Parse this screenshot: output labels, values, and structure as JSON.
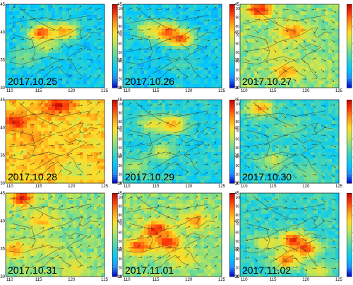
{
  "figure": {
    "panel_dates": [
      "2017.10.25",
      "2017.10.26",
      "2017.10.27",
      "2017.10.28",
      "2017.10.29",
      "2017.10.30",
      "2017.10.31",
      "2017.11.01",
      "2017.11.02"
    ]
  },
  "chart_data": {
    "type": "heatmap",
    "grid": "3x3 panels",
    "x_ticks": [
      "110",
      "115",
      "120",
      "125"
    ],
    "y_ticks": [
      "30",
      "35",
      "40",
      "45"
    ],
    "xlim": [
      110,
      125
    ],
    "ylim": [
      30,
      45
    ],
    "colorbar": {
      "ticks": [
        "10",
        "20",
        "30",
        "40",
        "50",
        "60",
        "70",
        "80",
        "90",
        "100"
      ],
      "range": [
        10,
        105
      ],
      "colormap": [
        "#0000c8",
        "#1e90ff",
        "#00c8ff",
        "#32d2c8",
        "#78dc8c",
        "#c8e650",
        "#ffdc28",
        "#ff9614",
        "#ff3c0a",
        "#c80000"
      ]
    },
    "panels": [
      {
        "date": "2017.10.25",
        "hotspots": [
          {
            "lon": 115.5,
            "lat": 39.7,
            "value": 100
          },
          {
            "lon": 119,
            "lat": 40.2,
            "value": 85
          },
          {
            "lon": 116,
            "lat": 37.5,
            "value": 65
          },
          {
            "lon": 113,
            "lat": 35.5,
            "value": 55
          }
        ],
        "background": 35
      },
      {
        "date": "2017.10.26",
        "hotspots": [
          {
            "lon": 116.5,
            "lat": 40,
            "value": 100
          },
          {
            "lon": 118.8,
            "lat": 38.8,
            "value": 95
          },
          {
            "lon": 114,
            "lat": 40.5,
            "value": 70
          },
          {
            "lon": 119,
            "lat": 34,
            "value": 45
          }
        ],
        "background": 35
      },
      {
        "date": "2017.10.27",
        "hotspots": [
          {
            "lon": 113,
            "lat": 44,
            "value": 100
          },
          {
            "lon": 118,
            "lat": 40,
            "value": 90
          },
          {
            "lon": 117,
            "lat": 33,
            "value": 85
          },
          {
            "lon": 115,
            "lat": 36.5,
            "value": 70
          },
          {
            "lon": 121,
            "lat": 34,
            "value": 65
          }
        ],
        "background": 55
      },
      {
        "date": "2017.10.28",
        "hotspots": [
          {
            "lon": 111.5,
            "lat": 41,
            "value": 100
          },
          {
            "lon": 118,
            "lat": 44,
            "value": 100
          },
          {
            "lon": 114,
            "lat": 38,
            "value": 85
          },
          {
            "lon": 116,
            "lat": 34,
            "value": 80
          },
          {
            "lon": 120.5,
            "lat": 32.5,
            "value": 60
          }
        ],
        "background": 75
      },
      {
        "date": "2017.10.29",
        "hotspots": [
          {
            "lon": 117.5,
            "lat": 40.5,
            "value": 85
          },
          {
            "lon": 114.5,
            "lat": 40.5,
            "value": 70
          },
          {
            "lon": 116,
            "lat": 35.5,
            "value": 65
          },
          {
            "lon": 112,
            "lat": 33,
            "value": 60
          }
        ],
        "background": 38
      },
      {
        "date": "2017.10.30",
        "hotspots": [
          {
            "lon": 113,
            "lat": 43.5,
            "value": 85
          },
          {
            "lon": 117.5,
            "lat": 40,
            "value": 55
          },
          {
            "lon": 115,
            "lat": 34,
            "value": 65
          },
          {
            "lon": 120.5,
            "lat": 31.5,
            "value": 55
          }
        ],
        "background": 40
      },
      {
        "date": "2017.10.31",
        "hotspots": [
          {
            "lon": 112.5,
            "lat": 44,
            "value": 100
          },
          {
            "lon": 115.5,
            "lat": 40,
            "value": 80
          },
          {
            "lon": 111.5,
            "lat": 35,
            "value": 85
          },
          {
            "lon": 116,
            "lat": 35.5,
            "value": 70
          },
          {
            "lon": 120.5,
            "lat": 31.5,
            "value": 70
          }
        ],
        "background": 55
      },
      {
        "date": "2017.11.01",
        "hotspots": [
          {
            "lon": 115,
            "lat": 38.5,
            "value": 100
          },
          {
            "lon": 117,
            "lat": 36,
            "value": 100
          },
          {
            "lon": 112.5,
            "lat": 35.5,
            "value": 95
          },
          {
            "lon": 121,
            "lat": 40,
            "value": 85
          },
          {
            "lon": 119,
            "lat": 33.5,
            "value": 75
          }
        ],
        "background": 55
      },
      {
        "date": "2017.11.02",
        "hotspots": [
          {
            "lon": 118,
            "lat": 36.5,
            "value": 100
          },
          {
            "lon": 120,
            "lat": 35,
            "value": 95
          },
          {
            "lon": 117,
            "lat": 33,
            "value": 90
          },
          {
            "lon": 114,
            "lat": 36,
            "value": 70
          },
          {
            "lon": 122,
            "lat": 31,
            "value": 70
          }
        ],
        "background": 42
      }
    ]
  }
}
